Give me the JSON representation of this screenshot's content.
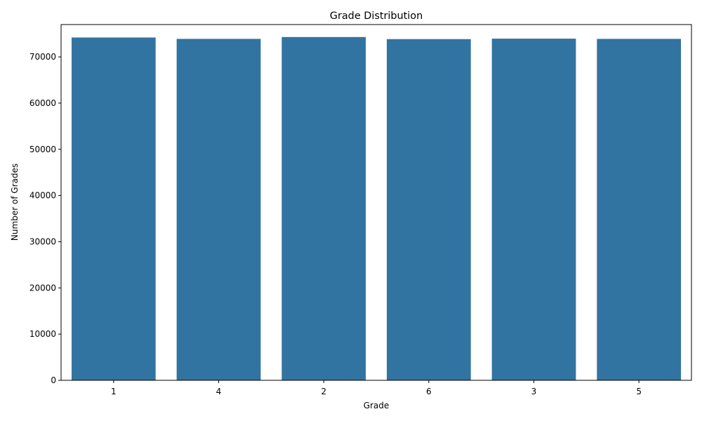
{
  "chart_data": {
    "type": "bar",
    "title": "Grade Distribution",
    "xlabel": "Grade",
    "ylabel": "Number of Grades",
    "categories": [
      "1",
      "4",
      "2",
      "6",
      "3",
      "5"
    ],
    "values": [
      74200,
      73900,
      74300,
      73850,
      73950,
      73900
    ],
    "ylim": [
      0,
      77000
    ],
    "yticks": [
      0,
      10000,
      20000,
      30000,
      40000,
      50000,
      60000,
      70000
    ],
    "ytick_labels": [
      "0",
      "10000",
      "20000",
      "30000",
      "40000",
      "50000",
      "60000",
      "70000"
    ],
    "grid": false,
    "bar_color": "#3274a1"
  }
}
